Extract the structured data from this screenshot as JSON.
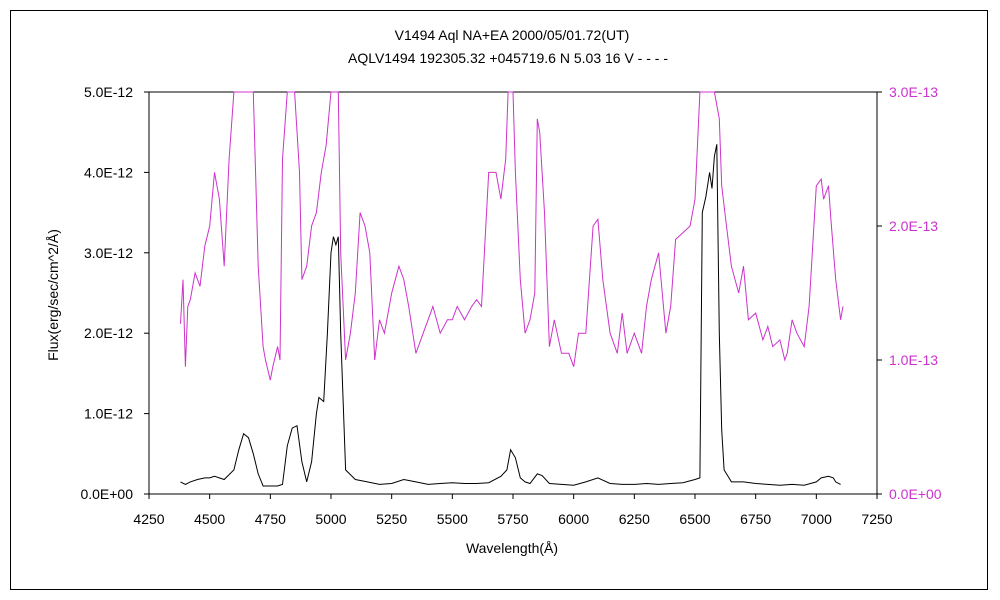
{
  "chart_data": {
    "type": "line",
    "title": "V1494 Aql    NA+EA    2000/05/01.72(UT)",
    "subtitle": "AQLV1494 192305.32 +045719.6 N 5.03 16 V - - - -",
    "xlabel": "Wavelength(Å)",
    "ylabel": "Flux(erg/sec/cm^2/Å)",
    "xlim": [
      4250,
      7250
    ],
    "ylim": [
      0,
      5e-12
    ],
    "y2lim": [
      0,
      3e-13
    ],
    "xticks": [
      "4250",
      "4500",
      "4750",
      "5000",
      "5250",
      "5500",
      "5750",
      "6000",
      "6250",
      "6500",
      "6750",
      "7000",
      "7250"
    ],
    "yticks": [
      "0.0E+00",
      "1.0E-12",
      "2.0E-12",
      "3.0E-12",
      "4.0E-12",
      "5.0E-12"
    ],
    "y2ticks": [
      "0.0E+00",
      "1.0E-13",
      "2.0E-13",
      "3.0E-13"
    ],
    "grid": false,
    "colors": {
      "primary": "#000000",
      "secondary": "#cc33cc"
    },
    "series": [
      {
        "axis": "left",
        "x": [
          4380,
          4400,
          4420,
          4450,
          4480,
          4500,
          4520,
          4560,
          4600,
          4620,
          4640,
          4660,
          4680,
          4700,
          4720,
          4750,
          4780,
          4800,
          4820,
          4840,
          4860,
          4880,
          4900,
          4920,
          4940,
          4950,
          4970,
          4985,
          5000,
          5010,
          5020,
          5030,
          5040,
          5060,
          5100,
          5150,
          5200,
          5250,
          5300,
          5350,
          5400,
          5450,
          5500,
          5550,
          5600,
          5650,
          5700,
          5725,
          5740,
          5760,
          5780,
          5800,
          5820,
          5850,
          5870,
          5900,
          5950,
          6000,
          6050,
          6100,
          6150,
          6200,
          6250,
          6300,
          6350,
          6400,
          6450,
          6500,
          6520,
          6530,
          6545,
          6560,
          6570,
          6580,
          6590,
          6600,
          6610,
          6620,
          6640,
          6650,
          6700,
          6750,
          6800,
          6850,
          6900,
          6950,
          7000,
          7020,
          7050,
          7070,
          7080,
          7100
        ],
        "values": [
          1.5e-13,
          1.2e-13,
          1.5e-13,
          1.8e-13,
          2e-13,
          2e-13,
          2.2e-13,
          1.8e-13,
          3e-13,
          5.5e-13,
          7.5e-13,
          7e-13,
          5e-13,
          2.5e-13,
          1e-13,
          1e-13,
          1e-13,
          1.2e-13,
          6e-13,
          8.2e-13,
          8.5e-13,
          4e-13,
          1.5e-13,
          4e-13,
          1e-12,
          1.2e-12,
          1.15e-12,
          2e-12,
          3e-12,
          3.2e-12,
          3.1e-12,
          3.2e-12,
          2e-12,
          3e-13,
          1.8e-13,
          1.5e-13,
          1.2e-13,
          1.3e-13,
          1.8e-13,
          1.5e-13,
          1.2e-13,
          1.3e-13,
          1.4e-13,
          1.3e-13,
          1.3e-13,
          1.4e-13,
          2.2e-13,
          3e-13,
          5.5e-13,
          4.5e-13,
          2e-13,
          1.5e-13,
          1.3e-13,
          2.5e-13,
          2.3e-13,
          1.3e-13,
          1.2e-13,
          1.1e-13,
          1.5e-13,
          2e-13,
          1.3e-13,
          1.2e-13,
          1.2e-13,
          1.3e-13,
          1.2e-13,
          1.3e-13,
          1.4e-13,
          1.8e-13,
          2e-13,
          3.5e-12,
          3.7e-12,
          4e-12,
          3.8e-12,
          4.2e-12,
          4.35e-12,
          2e-12,
          8e-13,
          3e-13,
          2e-13,
          1.5e-13,
          1.5e-13,
          1.3e-13,
          1.2e-13,
          1.1e-13,
          1.2e-13,
          1.1e-13,
          1.5e-13,
          2e-13,
          2.2e-13,
          2e-13,
          1.5e-13,
          1.2e-13
        ]
      },
      {
        "axis": "right",
        "x": [
          4380,
          4390,
          4400,
          4410,
          4420,
          4440,
          4460,
          4480,
          4500,
          4520,
          4540,
          4560,
          4580,
          4600,
          4610,
          4620,
          4640,
          4660,
          4680,
          4700,
          4720,
          4730,
          4750,
          4760,
          4780,
          4790,
          4800,
          4820,
          4830,
          4840,
          4850,
          4870,
          4880,
          4900,
          4920,
          4940,
          4960,
          4980,
          5000,
          5020,
          5030,
          5040,
          5060,
          5080,
          5100,
          5120,
          5140,
          5160,
          5180,
          5200,
          5220,
          5250,
          5280,
          5300,
          5320,
          5350,
          5380,
          5400,
          5420,
          5450,
          5480,
          5500,
          5520,
          5550,
          5580,
          5600,
          5620,
          5650,
          5680,
          5700,
          5720,
          5730,
          5740,
          5750,
          5760,
          5780,
          5800,
          5820,
          5840,
          5850,
          5860,
          5880,
          5900,
          5920,
          5950,
          5980,
          6000,
          6020,
          6050,
          6080,
          6100,
          6120,
          6150,
          6180,
          6200,
          6220,
          6250,
          6280,
          6300,
          6320,
          6350,
          6380,
          6400,
          6420,
          6450,
          6480,
          6500,
          6520,
          6530,
          6550,
          6560,
          6580,
          6600,
          6610,
          6630,
          6650,
          6680,
          6700,
          6720,
          6750,
          6780,
          6800,
          6820,
          6850,
          6870,
          6880,
          6900,
          6920,
          6950,
          6970,
          7000,
          7020,
          7030,
          7050,
          7060,
          7080,
          7100,
          7110
        ],
        "values": [
          1.27e-13,
          1.6e-13,
          9.5e-14,
          1.4e-13,
          1.45e-13,
          1.65e-13,
          1.55e-13,
          1.85e-13,
          2e-13,
          2.4e-13,
          2.2e-13,
          1.7e-13,
          2.5e-13,
          3e-13,
          3e-13,
          3e-13,
          3e-13,
          3e-13,
          3e-13,
          1.7e-13,
          1.1e-13,
          1e-13,
          8.5e-14,
          9.5e-14,
          1.1e-13,
          1e-13,
          2.5e-13,
          3e-13,
          3e-13,
          3e-13,
          3e-13,
          2.4e-13,
          1.6e-13,
          1.7e-13,
          2e-13,
          2.1e-13,
          2.4e-13,
          2.6e-13,
          3e-13,
          3e-13,
          3e-13,
          1.8e-13,
          1e-13,
          1.2e-13,
          1.5e-13,
          2.1e-13,
          2e-13,
          1.8e-13,
          1e-13,
          1.3e-13,
          1.2e-13,
          1.5e-13,
          1.7e-13,
          1.6e-13,
          1.4e-13,
          1.05e-13,
          1.2e-13,
          1.3e-13,
          1.4e-13,
          1.2e-13,
          1.3e-13,
          1.3e-13,
          1.4e-13,
          1.3e-13,
          1.4e-13,
          1.45e-13,
          1.4e-13,
          2.4e-13,
          2.4e-13,
          2.2e-13,
          2.5e-13,
          3e-13,
          3e-13,
          3e-13,
          2.4e-13,
          1.6e-13,
          1.2e-13,
          1.3e-13,
          1.5e-13,
          2.8e-13,
          2.7e-13,
          2.1e-13,
          1.1e-13,
          1.3e-13,
          1.05e-13,
          1.05e-13,
          9.5e-14,
          1.2e-13,
          1.2e-13,
          2e-13,
          2.05e-13,
          1.6e-13,
          1.2e-13,
          1.05e-13,
          1.35e-13,
          1.05e-13,
          1.2e-13,
          1.05e-13,
          1.4e-13,
          1.6e-13,
          1.8e-13,
          1.2e-13,
          1.4e-13,
          1.9e-13,
          1.95e-13,
          2e-13,
          2.2e-13,
          3e-13,
          3e-13,
          3e-13,
          3e-13,
          3e-13,
          2.8e-13,
          2.3e-13,
          2e-13,
          1.7e-13,
          1.5e-13,
          1.7e-13,
          1.3e-13,
          1.35e-13,
          1.15e-13,
          1.25e-13,
          1.1e-13,
          1.15e-13,
          1e-13,
          1.05e-13,
          1.3e-13,
          1.2e-13,
          1.1e-13,
          1.4e-13,
          2.3e-13,
          2.35e-13,
          2.2e-13,
          2.3e-13,
          2.05e-13,
          1.6e-13,
          1.3e-13,
          1.4e-13
        ]
      }
    ]
  }
}
